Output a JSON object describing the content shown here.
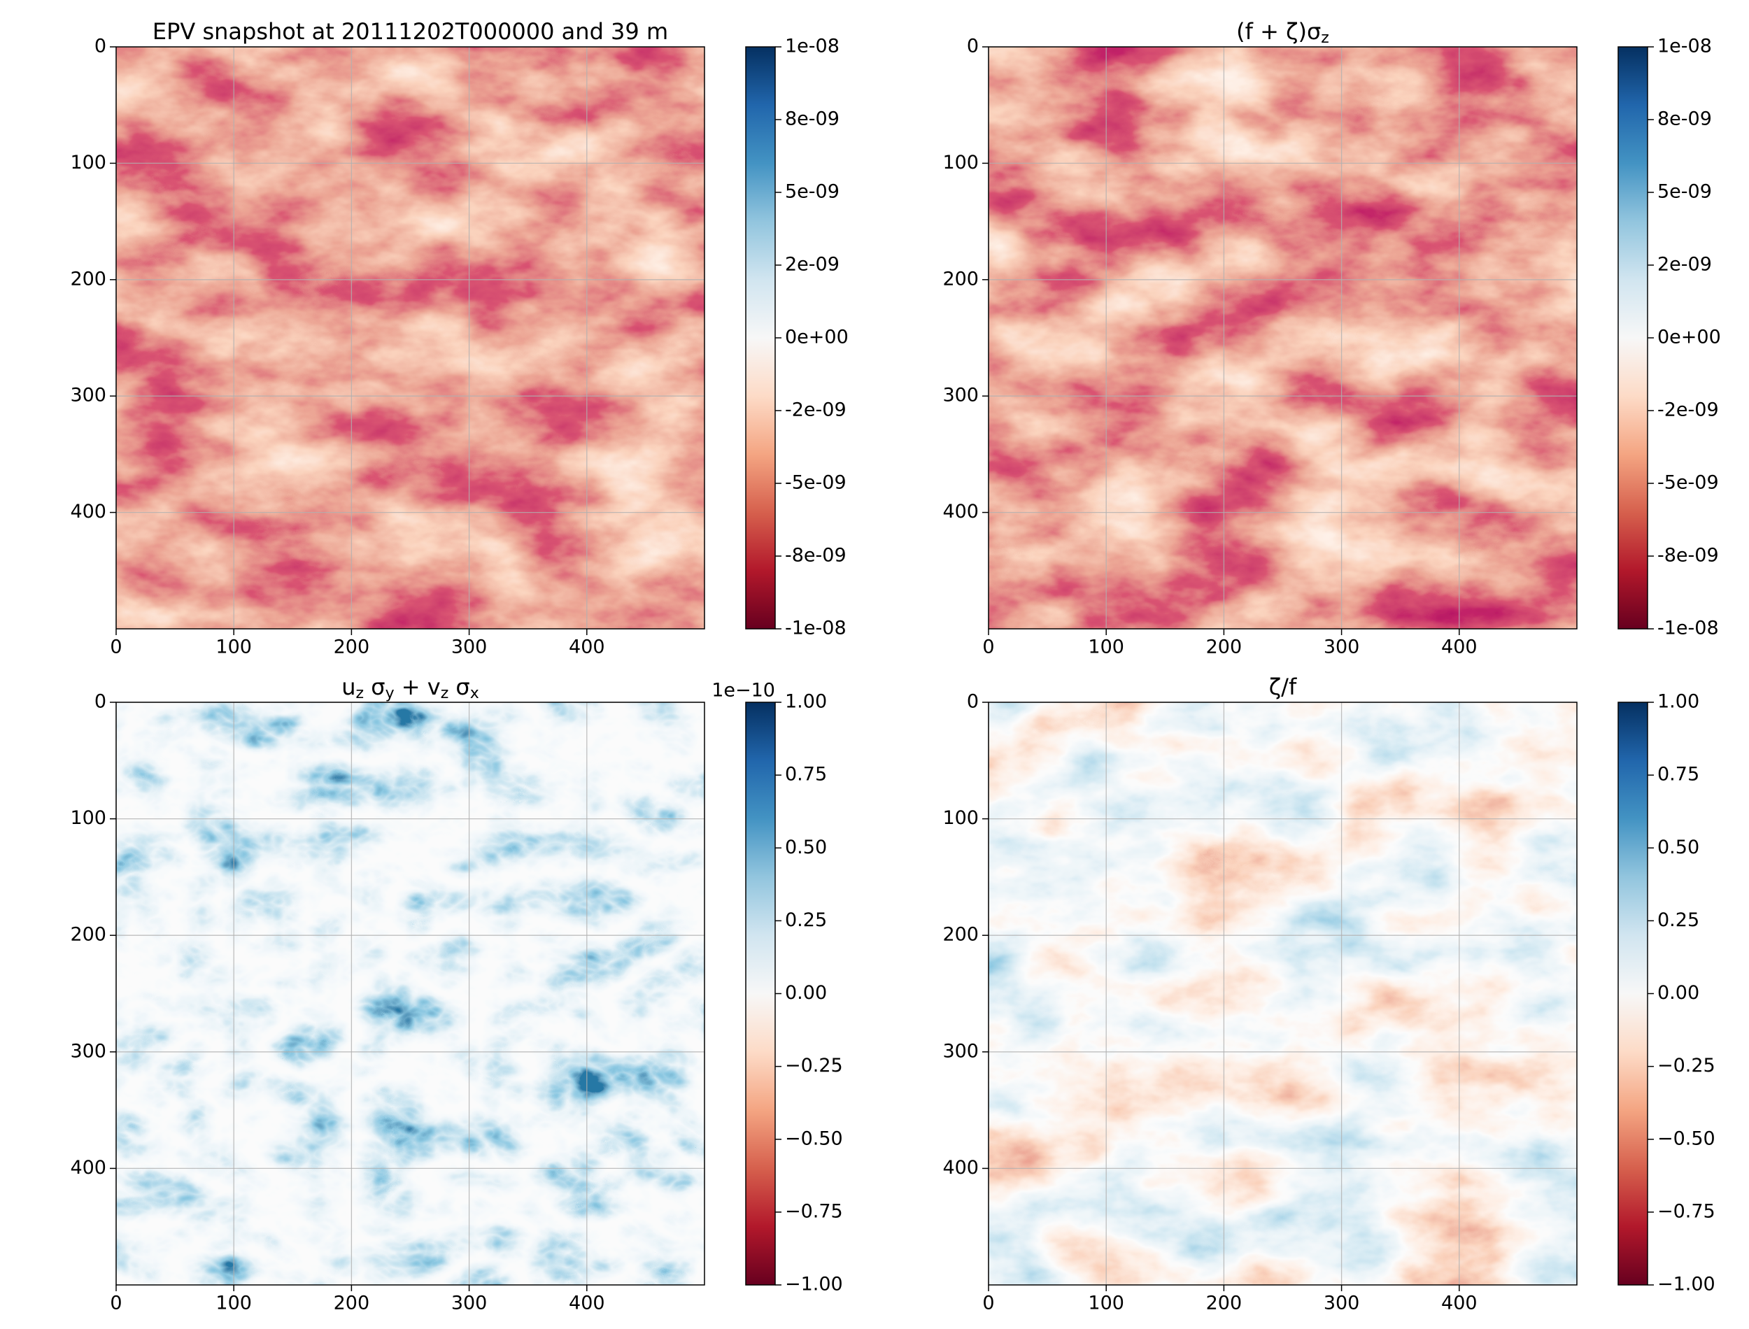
{
  "chart_data": [
    {
      "type": "heatmap",
      "title": [
        "EPV snapshot at 20111202T000000 and 39 m"
      ],
      "xlim": [
        0,
        500
      ],
      "ylim": [
        500,
        0
      ],
      "xticks": [
        0,
        100,
        200,
        300,
        400
      ],
      "yticks": [
        0,
        100,
        200,
        300,
        400
      ],
      "grid": true,
      "colormap": "RdBu",
      "clim": [
        -1e-08,
        1e-08
      ],
      "cticks": [
        {
          "value": 1e-08,
          "label": "1e-08"
        },
        {
          "value": 7.5e-09,
          "label": "8e-09"
        },
        {
          "value": 5e-09,
          "label": "5e-09"
        },
        {
          "value": 2.5e-09,
          "label": "2e-09"
        },
        {
          "value": 0,
          "label": "0e+00"
        },
        {
          "value": -2.5e-09,
          "label": "-2e-09"
        },
        {
          "value": -5e-09,
          "label": "-5e-09"
        },
        {
          "value": -7.5e-09,
          "label": "-8e-09"
        },
        {
          "value": -1e-08,
          "label": "-1e-08"
        }
      ]
    },
    {
      "type": "heatmap",
      "title": [
        "(f + ζ)σ",
        "z"
      ],
      "xlim": [
        0,
        500
      ],
      "ylim": [
        500,
        0
      ],
      "xticks": [
        0,
        100,
        200,
        300,
        400
      ],
      "yticks": [
        0,
        100,
        200,
        300,
        400
      ],
      "grid": true,
      "colormap": "RdBu",
      "clim": [
        -1e-08,
        1e-08
      ],
      "cticks": [
        {
          "value": 1e-08,
          "label": "1e-08"
        },
        {
          "value": 7.5e-09,
          "label": "8e-09"
        },
        {
          "value": 5e-09,
          "label": "5e-09"
        },
        {
          "value": 2.5e-09,
          "label": "2e-09"
        },
        {
          "value": 0,
          "label": "0e+00"
        },
        {
          "value": -2.5e-09,
          "label": "-2e-09"
        },
        {
          "value": -5e-09,
          "label": "-5e-09"
        },
        {
          "value": -7.5e-09,
          "label": "-8e-09"
        },
        {
          "value": -1e-08,
          "label": "-1e-08"
        }
      ]
    },
    {
      "type": "heatmap",
      "title": [
        "u",
        "z",
        " σ",
        "y",
        " + v",
        "z",
        " σ",
        "x"
      ],
      "xlim": [
        0,
        500
      ],
      "ylim": [
        500,
        0
      ],
      "xticks": [
        0,
        100,
        200,
        300,
        400
      ],
      "yticks": [
        0,
        100,
        200,
        300,
        400
      ],
      "grid": true,
      "colormap": "RdBu",
      "clim": [
        -1,
        1
      ],
      "colorbar_offset": "1e−10",
      "cticks": [
        {
          "value": 1,
          "label": "1.00"
        },
        {
          "value": 0.75,
          "label": "0.75"
        },
        {
          "value": 0.5,
          "label": "0.50"
        },
        {
          "value": 0.25,
          "label": "0.25"
        },
        {
          "value": 0,
          "label": "0.00"
        },
        {
          "value": -0.25,
          "label": "−0.25"
        },
        {
          "value": -0.5,
          "label": "−0.50"
        },
        {
          "value": -0.75,
          "label": "−0.75"
        },
        {
          "value": -1,
          "label": "−1.00"
        }
      ]
    },
    {
      "type": "heatmap",
      "title": [
        "ζ/f"
      ],
      "xlim": [
        0,
        500
      ],
      "ylim": [
        500,
        0
      ],
      "xticks": [
        0,
        100,
        200,
        300,
        400
      ],
      "yticks": [
        0,
        100,
        200,
        300,
        400
      ],
      "grid": true,
      "colormap": "RdBu",
      "clim": [
        -1,
        1
      ],
      "cticks": [
        {
          "value": 1,
          "label": "1.00"
        },
        {
          "value": 0.75,
          "label": "0.75"
        },
        {
          "value": 0.5,
          "label": "0.50"
        },
        {
          "value": 0.25,
          "label": "0.25"
        },
        {
          "value": 0,
          "label": "0.00"
        },
        {
          "value": -0.25,
          "label": "−0.25"
        },
        {
          "value": -0.5,
          "label": "−0.50"
        },
        {
          "value": -0.75,
          "label": "−0.75"
        },
        {
          "value": -1,
          "label": "−1.00"
        }
      ]
    }
  ]
}
